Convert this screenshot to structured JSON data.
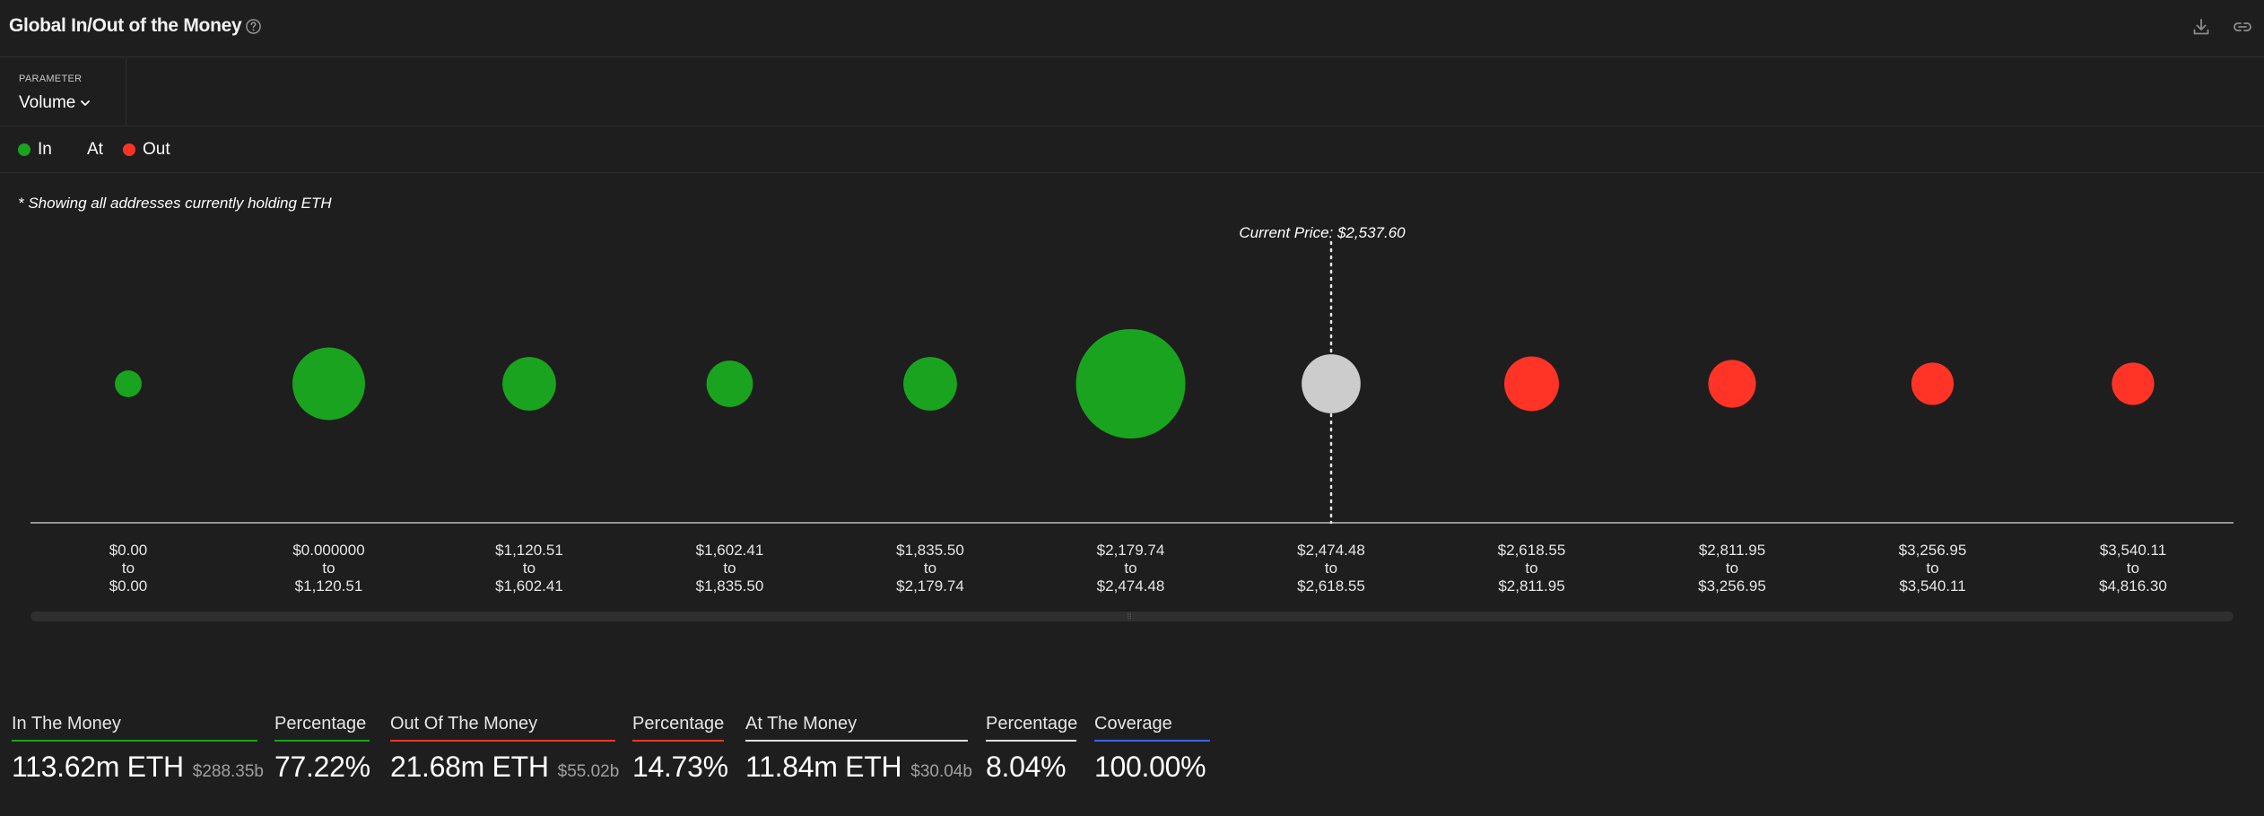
{
  "header": {
    "title": "Global In/Out of the Money",
    "help_icon": "help-circle-icon",
    "download_icon": "download-icon",
    "link_icon": "link-icon"
  },
  "parameter": {
    "caption": "PARAMETER",
    "value": "Volume",
    "chevron_icon": "chevron-down-icon"
  },
  "legend": [
    {
      "label": "In",
      "color": "#1aa31f"
    },
    {
      "label": "At",
      "color": ""
    },
    {
      "label": "Out",
      "color": "#ff3326"
    }
  ],
  "note": "* Showing all addresses currently holding ETH",
  "chart_data": {
    "type": "scatter",
    "subtype": "bubble",
    "current_price_label": "Current Price: $2,537.60",
    "current_price_bin_index": 6,
    "colors": {
      "in": "#1aa31f",
      "at": "#cccccc",
      "out": "#ff3326"
    },
    "categories": [
      {
        "from": "$0.00",
        "to_word": "to",
        "to": "$0.00",
        "status": "in",
        "relative_volume": 0.06
      },
      {
        "from": "$0.000000",
        "to_word": "to",
        "to": "$1,120.51",
        "status": "in",
        "relative_volume": 0.44
      },
      {
        "from": "$1,120.51",
        "to_word": "to",
        "to": "$1,602.41",
        "status": "in",
        "relative_volume": 0.24
      },
      {
        "from": "$1,602.41",
        "to_word": "to",
        "to": "$1,835.50",
        "status": "in",
        "relative_volume": 0.18
      },
      {
        "from": "$1,835.50",
        "to_word": "to",
        "to": "$2,179.74",
        "status": "in",
        "relative_volume": 0.24
      },
      {
        "from": "$2,179.74",
        "to_word": "to",
        "to": "$2,474.48",
        "status": "in",
        "relative_volume": 1.0
      },
      {
        "from": "$2,474.48",
        "to_word": "to",
        "to": "$2,618.55",
        "status": "at",
        "relative_volume": 0.29
      },
      {
        "from": "$2,618.55",
        "to_word": "to",
        "to": "$2,811.95",
        "status": "out",
        "relative_volume": 0.25
      },
      {
        "from": "$2,811.95",
        "to_word": "to",
        "to": "$3,256.95",
        "status": "out",
        "relative_volume": 0.19
      },
      {
        "from": "$3,256.95",
        "to_word": "to",
        "to": "$3,540.11",
        "status": "out",
        "relative_volume": 0.15
      },
      {
        "from": "$3,540.11",
        "to_word": "to",
        "to": "$4,816.30",
        "status": "out",
        "relative_volume": 0.15
      }
    ]
  },
  "stats": {
    "in_money": {
      "label": "In The Money",
      "value": "113.62m ETH",
      "sub": "$288.35b",
      "color": "#1aa31f"
    },
    "in_pct": {
      "label": "Percentage",
      "value": "77.22%",
      "color": "#1aa31f"
    },
    "out_money": {
      "label": "Out Of The Money",
      "value": "21.68m ETH",
      "sub": "$55.02b",
      "color": "#ff3326"
    },
    "out_pct": {
      "label": "Percentage",
      "value": "14.73%",
      "color": "#ff3326"
    },
    "at_money": {
      "label": "At The Money",
      "value": "11.84m ETH",
      "sub": "$30.04b",
      "color": "#e0e0e0"
    },
    "at_pct": {
      "label": "Percentage",
      "value": "8.04%",
      "color": "#e0e0e0"
    },
    "coverage": {
      "label": "Coverage",
      "value": "100.00%",
      "color": "#3f63e6"
    }
  }
}
